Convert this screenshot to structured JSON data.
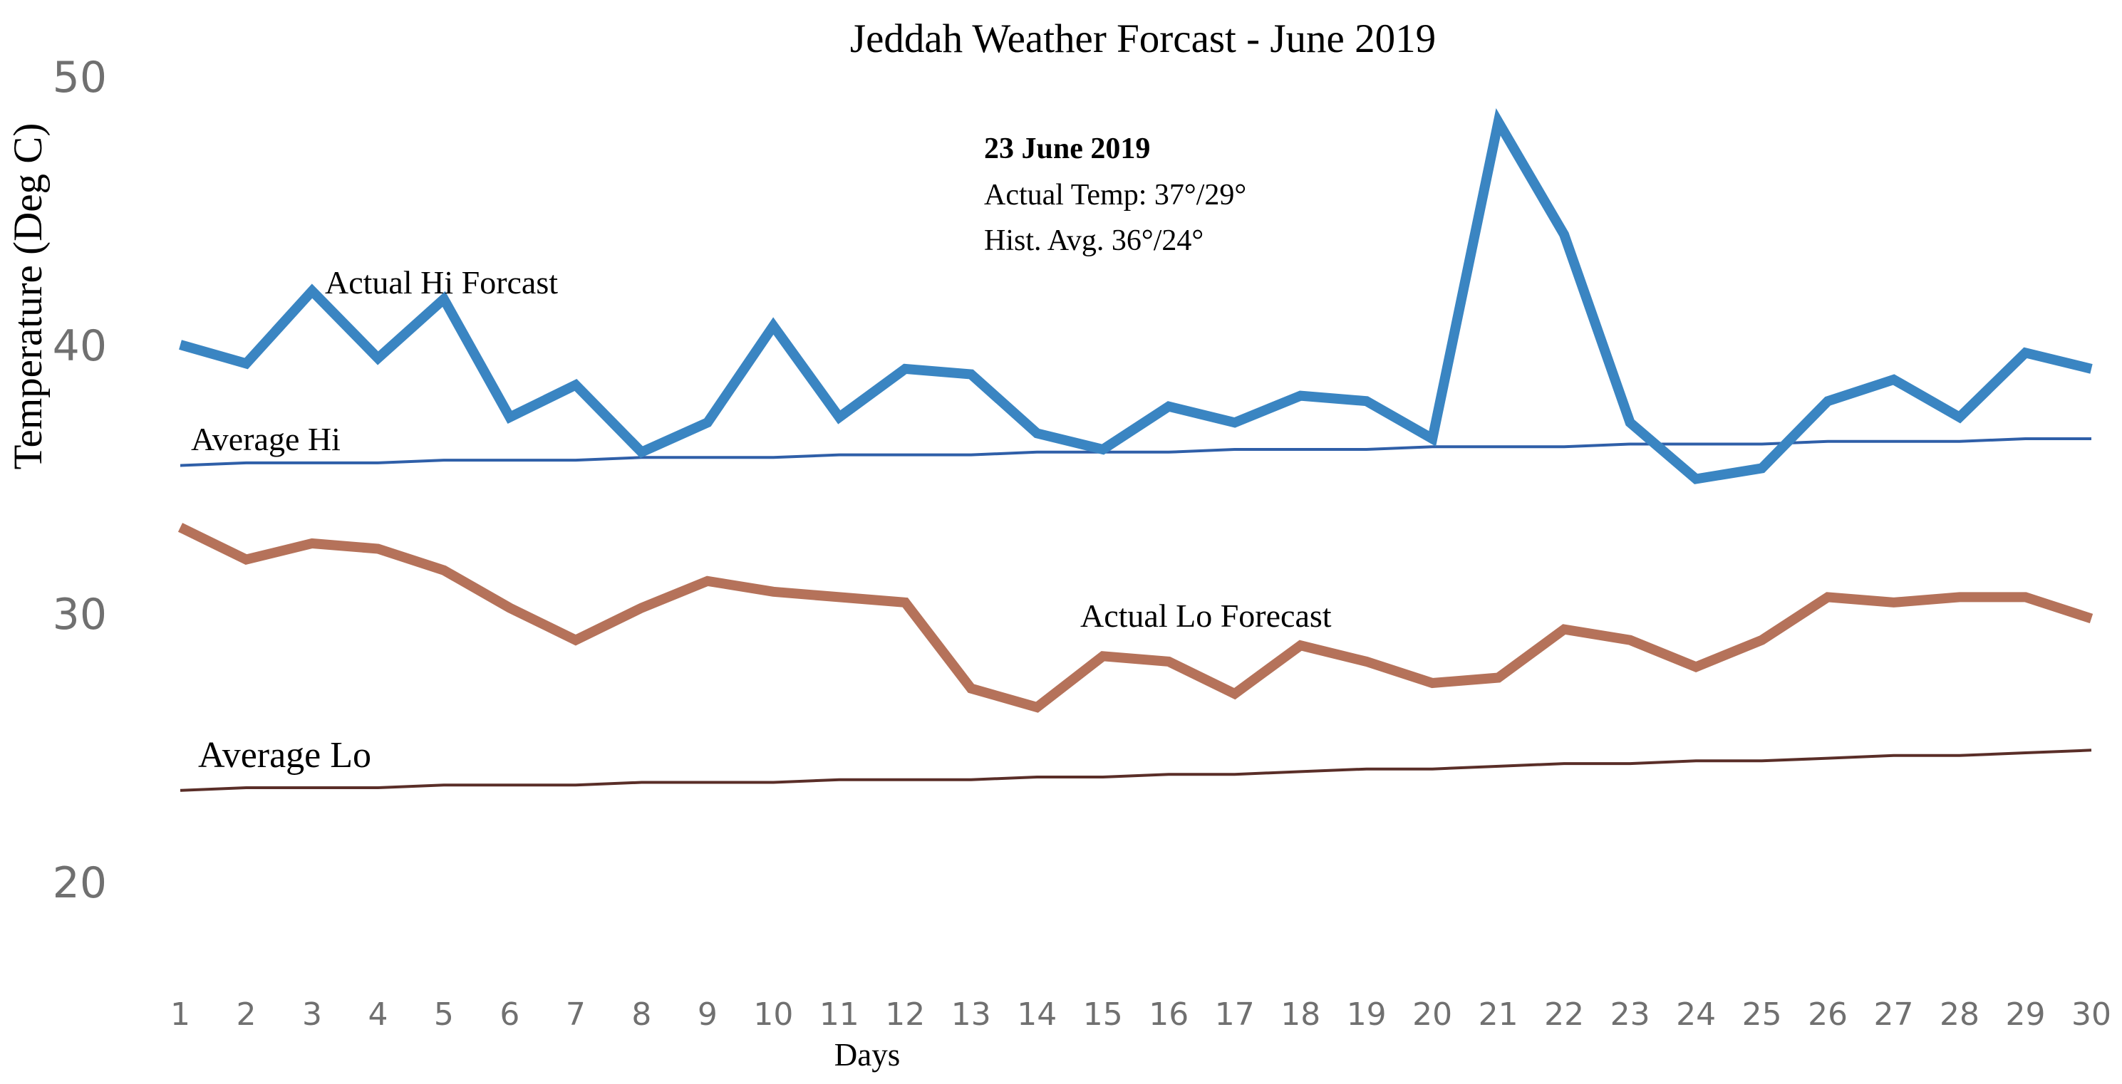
{
  "chart_data": {
    "type": "line",
    "title": "Jeddah Weather Forcast - June 2019",
    "xlabel": "Days",
    "ylabel": "Temperature (Deg C)",
    "x": [
      1,
      2,
      3,
      4,
      5,
      6,
      7,
      8,
      9,
      10,
      11,
      12,
      13,
      14,
      15,
      16,
      17,
      18,
      19,
      20,
      21,
      22,
      23,
      24,
      25,
      26,
      27,
      28,
      29,
      30
    ],
    "x_tick_labels": [
      "1",
      "2",
      "3",
      "4",
      "5",
      "6",
      "7",
      "8",
      "9",
      "10",
      "11",
      "12",
      "13",
      "14",
      "15",
      "16",
      "17",
      "18",
      "19",
      "20",
      "21",
      "22",
      "23",
      "24",
      "25",
      "26",
      "27",
      "28",
      "29",
      "30"
    ],
    "xlim": [
      1,
      30
    ],
    "ylim": [
      20,
      50
    ],
    "y_ticks": [
      20,
      30,
      40,
      50
    ],
    "grid": false,
    "series": [
      {
        "name": "Actual Hi Forcast",
        "color": "#3a85c2",
        "line_weight": "thick",
        "values": [
          40.0,
          39.3,
          42.0,
          39.5,
          41.7,
          37.3,
          38.5,
          36.0,
          37.1,
          40.7,
          37.3,
          39.1,
          38.9,
          36.7,
          36.1,
          37.7,
          37.1,
          38.1,
          37.9,
          36.5,
          48.3,
          44.1,
          37.1,
          35.0,
          35.4,
          37.9,
          38.7,
          37.3,
          39.7,
          39.1
        ]
      },
      {
        "name": "Average Hi",
        "color": "#2f5fa8",
        "line_weight": "thin",
        "values": [
          35.5,
          35.6,
          35.6,
          35.6,
          35.7,
          35.7,
          35.7,
          35.8,
          35.8,
          35.8,
          35.9,
          35.9,
          35.9,
          36.0,
          36.0,
          36.0,
          36.1,
          36.1,
          36.1,
          36.2,
          36.2,
          36.2,
          36.3,
          36.3,
          36.3,
          36.4,
          36.4,
          36.4,
          36.5,
          36.5
        ]
      },
      {
        "name": "Actual Lo Forecast",
        "color": "#b5725a",
        "line_weight": "thick",
        "values": [
          33.2,
          32.0,
          32.6,
          32.4,
          31.6,
          30.2,
          29.0,
          30.2,
          31.2,
          30.8,
          30.6,
          30.4,
          27.2,
          26.5,
          28.4,
          28.2,
          27.0,
          28.8,
          28.2,
          27.4,
          27.6,
          29.4,
          29.0,
          28.0,
          29.0,
          30.6,
          30.4,
          30.6,
          30.6,
          29.8
        ]
      },
      {
        "name": "Average Lo",
        "color": "#5a2e28",
        "line_weight": "thin",
        "values": [
          23.4,
          23.5,
          23.5,
          23.5,
          23.6,
          23.6,
          23.6,
          23.7,
          23.7,
          23.7,
          23.8,
          23.8,
          23.8,
          23.9,
          23.9,
          24.0,
          24.0,
          24.1,
          24.2,
          24.2,
          24.3,
          24.4,
          24.4,
          24.5,
          24.5,
          24.6,
          24.7,
          24.7,
          24.8,
          24.9
        ]
      }
    ],
    "annotations": {
      "date": "23 June 2019",
      "actual_temp": "Actual Temp: 37°/29°",
      "hist_avg": "Hist. Avg. 36°/24°"
    }
  }
}
